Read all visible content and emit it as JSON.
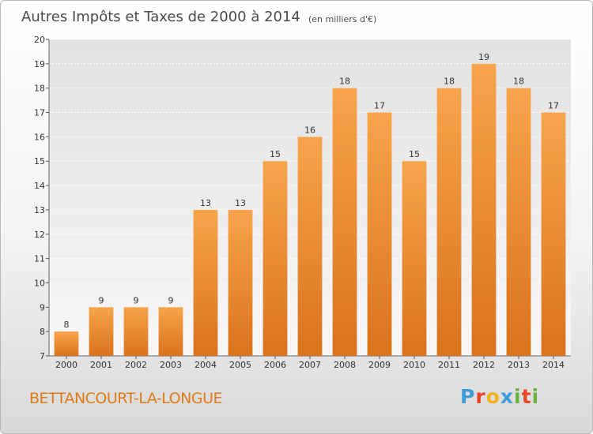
{
  "chart_data": {
    "type": "bar",
    "title": "Autres Impôts et Taxes de 2000 à 2014",
    "subtitle": "(en milliers d'€)",
    "categories": [
      "2000",
      "2001",
      "2002",
      "2003",
      "2004",
      "2005",
      "2006",
      "2007",
      "2008",
      "2009",
      "2010",
      "2011",
      "2012",
      "2013",
      "2014"
    ],
    "values": [
      8,
      9,
      9,
      9,
      13,
      13,
      15,
      16,
      18,
      17,
      15,
      18,
      19,
      18,
      17
    ],
    "ylim": [
      7,
      20
    ],
    "yticks": [
      7,
      8,
      9,
      10,
      11,
      12,
      13,
      14,
      15,
      16,
      17,
      18,
      19,
      20
    ],
    "grid": "horizontal",
    "bar_color_top": "#f7a44c",
    "bar_color_bottom": "#d9731c"
  },
  "commune": "BETTANCOURT-LA-LONGUE",
  "logo": {
    "letters": [
      "P",
      "r",
      "o",
      "x",
      "i",
      "t",
      "i"
    ],
    "colors": [
      "#3f9ad8",
      "#e8462a",
      "#f2b01e",
      "#3f9ad8",
      "#6ab23e",
      "#e8462a",
      "#6ab23e"
    ]
  }
}
